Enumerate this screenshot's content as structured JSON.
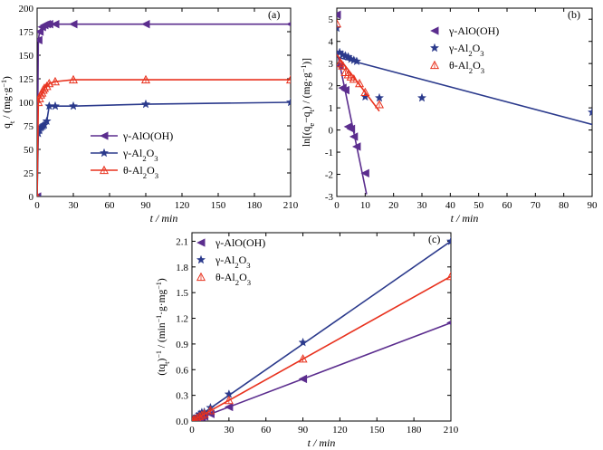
{
  "chart_data": [
    {
      "type": "line",
      "panel_label": "(a)",
      "xlabel": "t / min",
      "ylabel": "q_t / (mg·g⁻¹)",
      "xlim": [
        0,
        210
      ],
      "ylim": [
        0,
        200
      ],
      "xticks": [
        0,
        30,
        60,
        90,
        120,
        150,
        180,
        210
      ],
      "yticks": [
        0,
        25,
        50,
        75,
        100,
        125,
        150,
        175,
        200
      ],
      "legend_position": "lower-center",
      "series": [
        {
          "name": "γ-AlO(OH)",
          "color": "#5b2d8e",
          "marker": "triangle-left",
          "points": [
            [
              0,
              0
            ],
            [
              1,
              166
            ],
            [
              2,
              175
            ],
            [
              4,
              180
            ],
            [
              6,
              182
            ],
            [
              8,
              183
            ],
            [
              10,
              183
            ],
            [
              15,
              183
            ],
            [
              30,
              183
            ],
            [
              90,
              183
            ],
            [
              210,
              183
            ]
          ]
        },
        {
          "name": "γ-Al₂O₃",
          "color": "#2b3a8c",
          "marker": "star",
          "points": [
            [
              0,
              0
            ],
            [
              1,
              67
            ],
            [
              2,
              70
            ],
            [
              3,
              73
            ],
            [
              4,
              74
            ],
            [
              5,
              75
            ],
            [
              6,
              76
            ],
            [
              8,
              80
            ],
            [
              10,
              96
            ],
            [
              15,
              96
            ],
            [
              30,
              96
            ],
            [
              90,
              98
            ],
            [
              210,
              100
            ]
          ]
        },
        {
          "name": "θ-Al₂O₃",
          "color": "#e8321e",
          "marker": "triangle-up-open",
          "points": [
            [
              0,
              0
            ],
            [
              1,
              100
            ],
            [
              2,
              104
            ],
            [
              3,
              108
            ],
            [
              4,
              110
            ],
            [
              5,
              113
            ],
            [
              6,
              115
            ],
            [
              8,
              117
            ],
            [
              10,
              120
            ],
            [
              15,
              122
            ],
            [
              30,
              124
            ],
            [
              90,
              124
            ],
            [
              210,
              124
            ]
          ]
        }
      ]
    },
    {
      "type": "scatter",
      "panel_label": "(b)",
      "xlabel": "t / min",
      "ylabel": "ln[(q_e−q_t) / (mg·g⁻¹)]",
      "xlim": [
        0,
        90
      ],
      "ylim": [
        -3,
        5.5
      ],
      "xticks": [
        0,
        10,
        20,
        30,
        40,
        50,
        60,
        70,
        80,
        90
      ],
      "yticks": [
        -3,
        -2,
        -1,
        0,
        1,
        2,
        3,
        4,
        5
      ],
      "legend_position": "top-right",
      "series": [
        {
          "name": "γ-AlO(OH)",
          "color": "#5b2d8e",
          "marker": "triangle-left",
          "points": [
            [
              0,
              5.2
            ],
            [
              1,
              2.9
            ],
            [
              2,
              1.9
            ],
            [
              3,
              1.8
            ],
            [
              4,
              0.15
            ],
            [
              5,
              0.05
            ],
            [
              6,
              -0.3
            ],
            [
              7,
              -0.75
            ],
            [
              10,
              -1.95
            ]
          ],
          "fit": [
            [
              0,
              3.6
            ],
            [
              10.5,
              -2.9
            ]
          ]
        },
        {
          "name": "γ-Al₂O₃",
          "color": "#2b3a8c",
          "marker": "star",
          "points": [
            [
              0,
              4.6
            ],
            [
              1,
              3.5
            ],
            [
              2,
              3.4
            ],
            [
              3,
              3.35
            ],
            [
              4,
              3.3
            ],
            [
              5,
              3.2
            ],
            [
              6,
              3.15
            ],
            [
              7,
              3.1
            ],
            [
              10,
              1.5
            ],
            [
              15,
              1.45
            ],
            [
              30,
              1.45
            ],
            [
              90,
              0.8
            ]
          ],
          "fit": [
            [
              0,
              3.3
            ],
            [
              90,
              0.25
            ]
          ]
        },
        {
          "name": "θ-Al₂O₃",
          "color": "#e8321e",
          "marker": "triangle-up-open",
          "points": [
            [
              0,
              4.8
            ],
            [
              1,
              3.0
            ],
            [
              2,
              2.9
            ],
            [
              3,
              2.6
            ],
            [
              4,
              2.5
            ],
            [
              5,
              2.4
            ],
            [
              6,
              2.3
            ],
            [
              8,
              2.1
            ],
            [
              10,
              1.7
            ],
            [
              15,
              1.15
            ]
          ],
          "fit": [
            [
              0,
              3.4
            ],
            [
              15,
              0.85
            ]
          ]
        }
      ]
    },
    {
      "type": "line",
      "panel_label": "(c)",
      "xlabel": "t / min",
      "ylabel": "(tq_t)⁻¹ / (min⁻¹·g·mg⁻¹)",
      "xlim": [
        0,
        210
      ],
      "ylim": [
        0,
        2.2
      ],
      "xticks": [
        0,
        30,
        60,
        90,
        120,
        150,
        180,
        210
      ],
      "yticks": [
        0.0,
        0.3,
        0.6,
        0.9,
        1.2,
        1.5,
        1.8,
        2.1
      ],
      "legend_position": "top-left",
      "series": [
        {
          "name": "γ-AlO(OH)",
          "color": "#5b2d8e",
          "marker": "triangle-left",
          "points": [
            [
              1,
              0.006
            ],
            [
              2,
              0.011
            ],
            [
              4,
              0.022
            ],
            [
              6,
              0.033
            ],
            [
              8,
              0.044
            ],
            [
              10,
              0.055
            ],
            [
              15,
              0.082
            ],
            [
              30,
              0.164
            ],
            [
              90,
              0.492
            ],
            [
              210,
              1.148
            ]
          ],
          "fit": [
            [
              0,
              0
            ],
            [
              210,
              1.148
            ]
          ]
        },
        {
          "name": "γ-Al₂O₃",
          "color": "#2b3a8c",
          "marker": "star",
          "points": [
            [
              1,
              0.015
            ],
            [
              2,
              0.029
            ],
            [
              4,
              0.054
            ],
            [
              6,
              0.079
            ],
            [
              8,
              0.1
            ],
            [
              10,
              0.104
            ],
            [
              15,
              0.156
            ],
            [
              30,
              0.313
            ],
            [
              90,
              0.918
            ],
            [
              210,
              2.1
            ]
          ],
          "fit": [
            [
              0,
              0
            ],
            [
              210,
              2.1
            ]
          ]
        },
        {
          "name": "θ-Al₂O₃",
          "color": "#e8321e",
          "marker": "triangle-up-open",
          "points": [
            [
              1,
              0.01
            ],
            [
              2,
              0.019
            ],
            [
              4,
              0.036
            ],
            [
              6,
              0.052
            ],
            [
              8,
              0.068
            ],
            [
              10,
              0.083
            ],
            [
              15,
              0.123
            ],
            [
              30,
              0.242
            ],
            [
              90,
              0.726
            ],
            [
              210,
              1.69
            ]
          ],
          "fit": [
            [
              0,
              0
            ],
            [
              210,
              1.69
            ]
          ]
        }
      ]
    }
  ]
}
